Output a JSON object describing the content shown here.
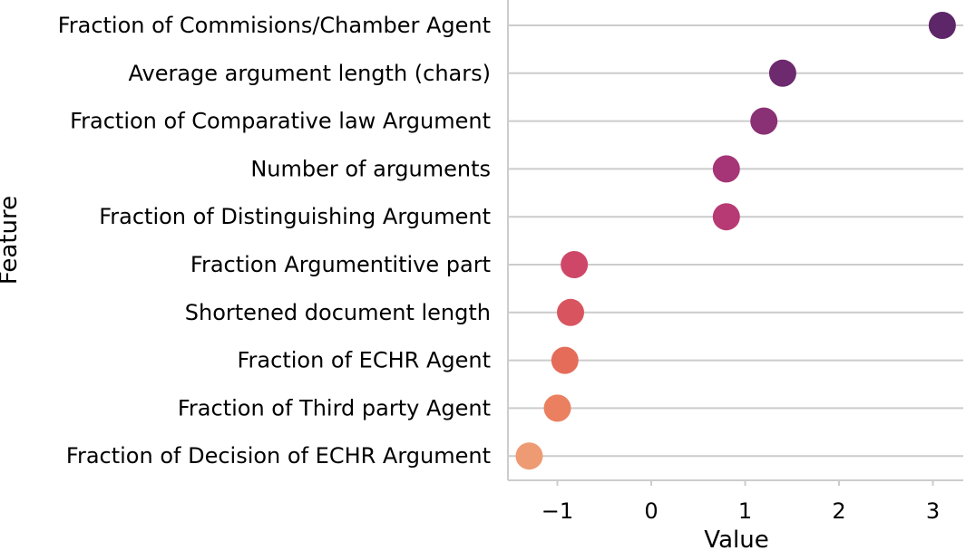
{
  "chart_data": {
    "type": "scatter",
    "xlabel": "Value",
    "ylabel": "Feature",
    "xlim": [
      -1.5,
      3.3
    ],
    "xticks": [
      -1,
      0,
      1,
      2,
      3
    ],
    "xtick_labels": [
      "−1",
      "0",
      "1",
      "2",
      "3"
    ],
    "grid": "horizontal",
    "categories": [
      "Fraction of Commisions/Chamber Agent",
      "Average argument length (chars)",
      "Fraction of Comparative law Argument",
      "Number of arguments",
      "Fraction of Distinguishing Argument",
      "Fraction Argumentitive part",
      "Shortened document length",
      "Fraction of ECHR Agent",
      "Fraction of Third party Agent",
      "Fraction of Decision of ECHR Argument"
    ],
    "values": [
      3.1,
      1.4,
      1.2,
      0.8,
      0.8,
      -0.82,
      -0.86,
      -0.92,
      -1.0,
      -1.3
    ],
    "colors": [
      "#5c2668",
      "#6d2a6e",
      "#8a3074",
      "#a53576",
      "#b83a74",
      "#cf4768",
      "#d85560",
      "#e46c59",
      "#ea8060",
      "#ee9a72"
    ]
  }
}
